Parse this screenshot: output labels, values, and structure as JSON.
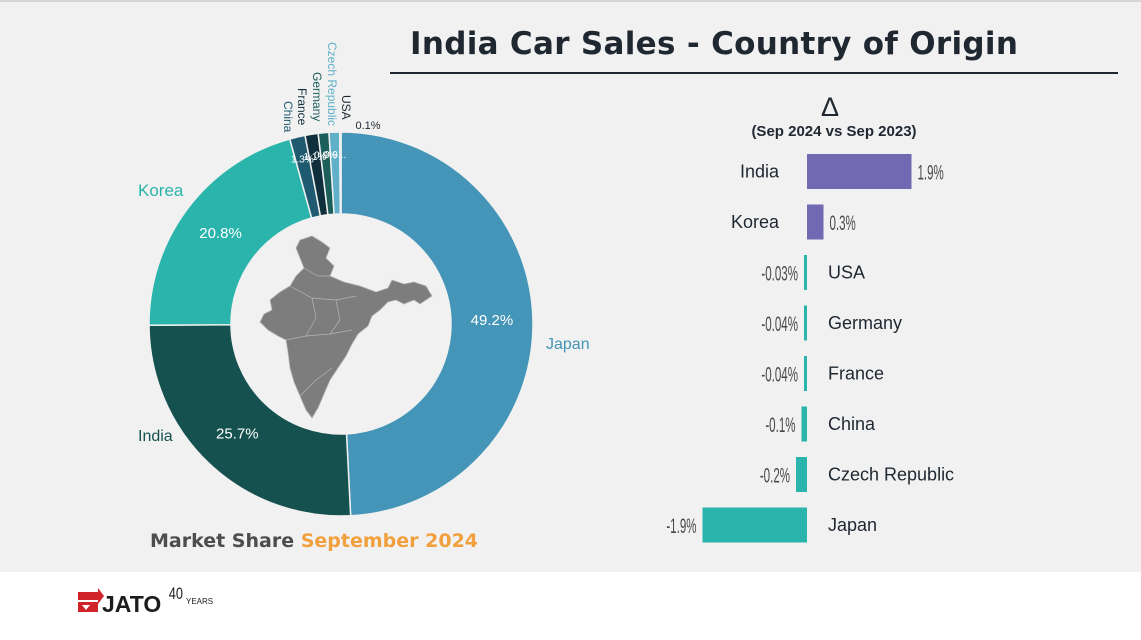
{
  "title": "India Car Sales - Country of Origin",
  "delta": {
    "symbol": "Δ",
    "period": "(Sep 2024 vs Sep 2023)"
  },
  "caption": {
    "prefix": "Market Share",
    "highlight": "September 2024"
  },
  "logo": {
    "text": "JATO",
    "years_number": "40",
    "years_word": "YEARS"
  },
  "colors": {
    "japan": "#4595b8",
    "india": "#15524f",
    "korea": "#2ab4ac",
    "china": "#1f5a70",
    "france": "#0f2f3c",
    "germany": "#1c5e5a",
    "czech": "#5fb0c8",
    "usa": "#a7d0de",
    "positive_bar": "#7169b2",
    "negative_bar": "#2ab4ac",
    "caption_orange": "#f2a03d"
  },
  "chart_data": [
    {
      "type": "pie",
      "donut": true,
      "slices": [
        {
          "label": "Japan",
          "value": 49.2,
          "value_label": "49.2%",
          "color": "#4595b8"
        },
        {
          "label": "India",
          "value": 25.7,
          "value_label": "25.7%",
          "color": "#15524f"
        },
        {
          "label": "Korea",
          "value": 20.8,
          "value_label": "20.8%",
          "color": "#2ab4ac"
        },
        {
          "label": "China",
          "value": 1.3,
          "value_label": "1.3%",
          "color": "#1f5a70"
        },
        {
          "label": "France",
          "value": 1.1,
          "value_label": "1.1%",
          "color": "#0f2f3c"
        },
        {
          "label": "Germany",
          "value": 0.9,
          "value_label": "0.9%",
          "color": "#1c5e5a"
        },
        {
          "label": "Czech Republic",
          "value": 0.9,
          "value_label": "0.9...",
          "color": "#5fb0c8"
        },
        {
          "label": "USA",
          "value": 0.1,
          "value_label": "0.1%",
          "color": "#a7d0de"
        }
      ]
    },
    {
      "type": "bar",
      "orientation": "horizontal",
      "categories": [
        "India",
        "Korea",
        "USA",
        "Germany",
        "France",
        "China",
        "Czech Republic",
        "Japan"
      ],
      "values": [
        1.9,
        0.3,
        -0.03,
        -0.04,
        -0.04,
        -0.1,
        -0.2,
        -1.9
      ],
      "value_labels": [
        "1.9%",
        "0.3%",
        "-0.03%",
        "-0.04%",
        "-0.04%",
        "-0.1%",
        "-0.2%",
        "-1.9%"
      ],
      "unit": "%"
    }
  ]
}
